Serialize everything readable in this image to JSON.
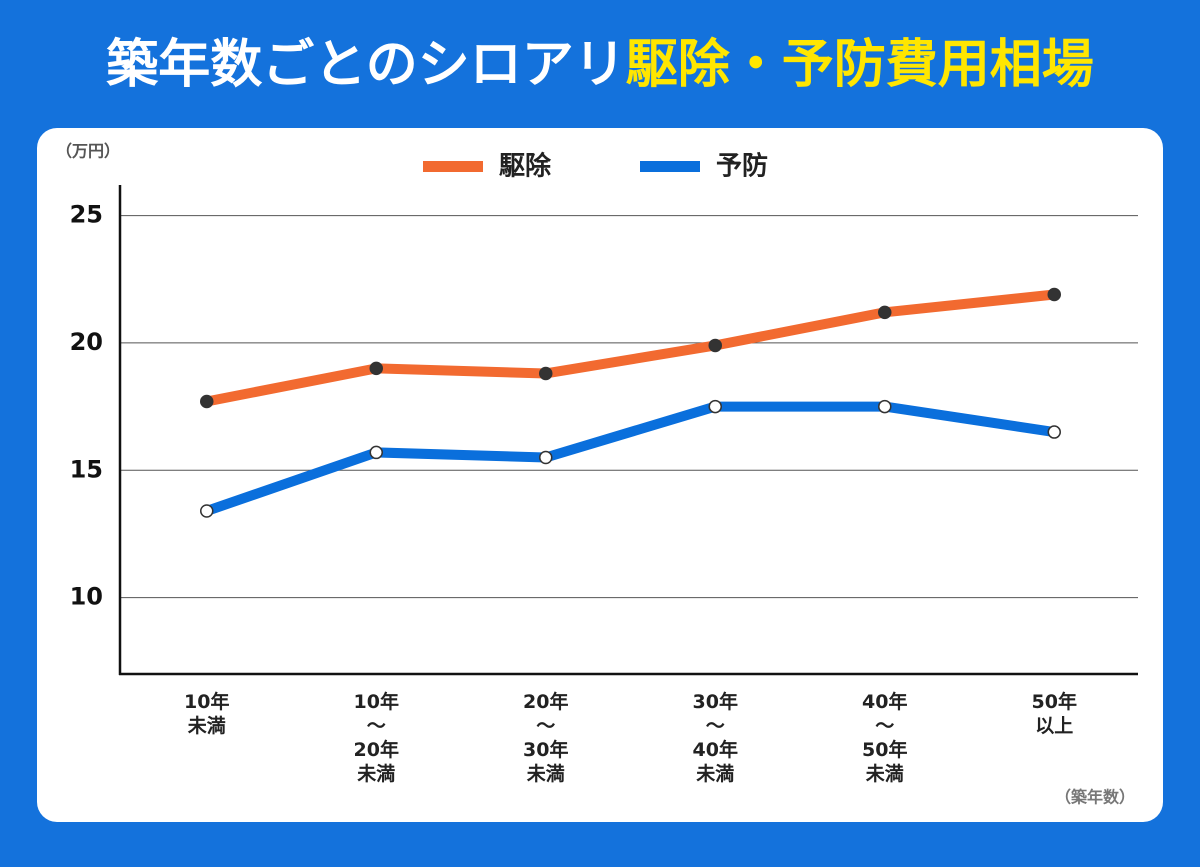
{
  "chart_data": {
    "type": "line",
    "title_parts": [
      "築年数ごとのシロアリ",
      "駆除・予防費用相場"
    ],
    "y_label": "（万円）",
    "x_label": "（築年数）",
    "categories": [
      "10年\n未満",
      "10年\n〜\n20年\n未満",
      "20年\n〜\n30年\n未満",
      "30年\n〜\n40年\n未満",
      "40年\n〜\n50年\n未満",
      "50年\n以上"
    ],
    "series": [
      {
        "name": "駆除",
        "color": "#f26a30",
        "values": [
          17.7,
          19.0,
          18.8,
          19.9,
          21.2,
          21.9
        ]
      },
      {
        "name": "予防",
        "color": "#0a6fdc",
        "values": [
          13.4,
          15.7,
          15.5,
          17.5,
          17.5,
          16.5
        ]
      }
    ],
    "ylim": [
      7,
      26.2
    ],
    "yticks": [
      10,
      15,
      20,
      25
    ],
    "grid": true
  }
}
